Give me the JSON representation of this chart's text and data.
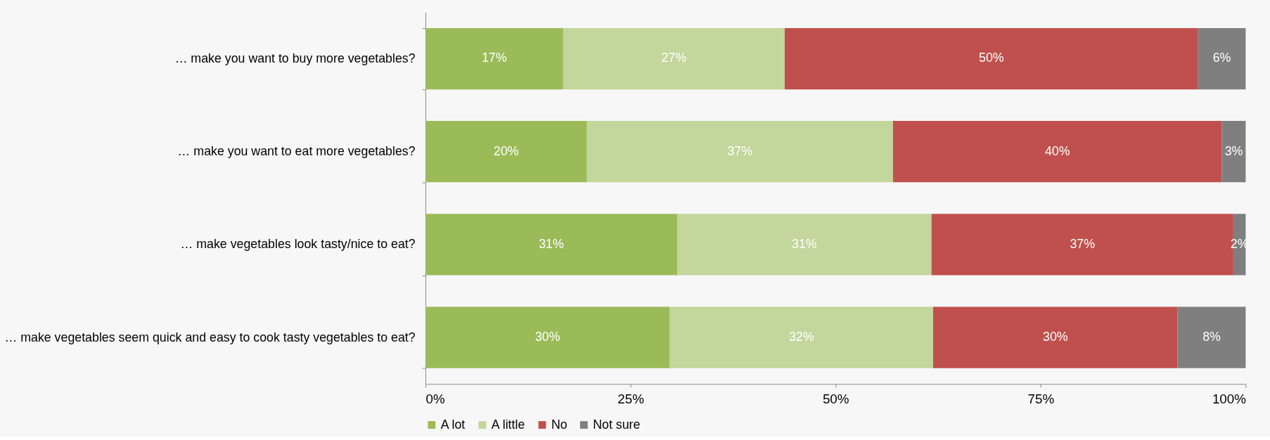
{
  "chart_data": {
    "type": "bar",
    "orientation": "horizontal",
    "stacked": true,
    "categories": [
      "… make you want to buy more vegetables?",
      "… make you want to eat more vegetables?",
      "… make vegetables look tasty/nice to eat?",
      "… make vegetables seem quick and easy to cook tasty vegetables to eat?"
    ],
    "series": [
      {
        "name": "A lot",
        "color": "#9bbb59",
        "values": [
          16.8,
          19.7,
          30.7,
          29.8
        ],
        "value_labels": [
          "17%",
          "20%",
          "31%",
          "30%"
        ]
      },
      {
        "name": "A little",
        "color": "#c3d69b",
        "values": [
          27.0,
          37.3,
          31.0,
          32.1
        ],
        "value_labels": [
          "27%",
          "37%",
          "31%",
          "32%"
        ]
      },
      {
        "name": "No",
        "color": "#c0504d",
        "values": [
          50.4,
          40.1,
          36.8,
          29.8
        ],
        "value_labels": [
          "50%",
          "40%",
          "37%",
          "30%"
        ]
      },
      {
        "name": "Not sure",
        "color": "#7f7f7f",
        "values": [
          5.8,
          2.9,
          1.5,
          8.3
        ],
        "value_labels": [
          "6%",
          "3%",
          "2%",
          "8%"
        ]
      }
    ],
    "xlim": [
      0,
      100
    ],
    "xticks": [
      {
        "value": 0,
        "label": "0%"
      },
      {
        "value": 25,
        "label": "25%"
      },
      {
        "value": 50,
        "label": "50%"
      },
      {
        "value": 75,
        "label": "75%"
      },
      {
        "value": 100,
        "label": "100%"
      }
    ],
    "grid": false,
    "legend": "bottom"
  }
}
